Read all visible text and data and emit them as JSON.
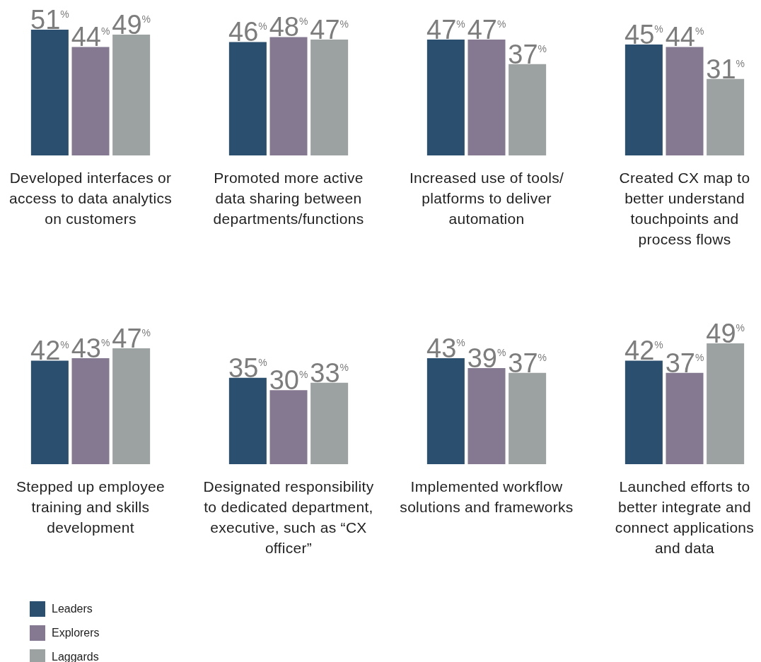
{
  "chart_data": [
    {
      "type": "bar",
      "categories": [
        "Developed interfaces or access to data analytics on customers"
      ],
      "series": [
        {
          "color": "#2b4f6e",
          "values": [
            51
          ],
          "value_labels": [
            "51$^{%}$"
          ]
        },
        {
          "color": "#857891",
          "values": [
            44
          ],
          "value_labels": [
            "44$^{%}$"
          ]
        },
        {
          "color": "#9ca1a1",
          "values": [
            49
          ],
          "value_labels": [
            "49$^{%}$"
          ]
        }
      ]
    },
    {
      "type": "bar",
      "categories": [
        "Promoted more active data sharing between departments/functions"
      ],
      "series": [
        {
          "color": "#2b4f6e",
          "values": [
            46
          ],
          "value_labels": [
            "46$^{%}$"
          ]
        },
        {
          "color": "#857891",
          "values": [
            48
          ],
          "value_labels": [
            "48$^{%}$"
          ]
        },
        {
          "color": "#9ca1a1",
          "values": [
            47
          ],
          "value_labels": [
            "47$^{%}$"
          ]
        }
      ]
    },
    {
      "type": "bar",
      "categories": [
        "Increased use of tools/ platforms to deliver automation"
      ],
      "series": [
        {
          "color": "#2b4f6e",
          "values": [
            47
          ],
          "value_labels": [
            "47$^{%}$"
          ]
        },
        {
          "color": "#857891",
          "values": [
            47
          ],
          "value_labels": [
            "47$^{%}$"
          ]
        },
        {
          "color": "#9ca1a1",
          "values": [
            37
          ],
          "value_labels": [
            "37$^{%}$"
          ]
        }
      ]
    },
    {
      "type": "bar",
      "categories": [
        "Created CX map to better understand touchpoints and process flows"
      ],
      "series": [
        {
          "color": "#2b4f6e",
          "values": [
            45
          ],
          "value_labels": [
            "45$^{%}$"
          ]
        },
        {
          "color": "#857891",
          "values": [
            44
          ],
          "value_labels": [
            "44$^{%}$"
          ]
        },
        {
          "color": "#9ca1a1",
          "values": [
            31
          ],
          "value_labels": [
            "31$^{%}$"
          ]
        }
      ]
    },
    {
      "type": "bar",
      "categories": [
        "Stepped up employee training and skills development"
      ],
      "legend": "bottom",
      "series": [
        {
          "name": "Leaders",
          "color": "#2b4f6e",
          "values": [
            42
          ],
          "value_labels": [
            "42$^{%}$"
          ]
        },
        {
          "name": "Explorers",
          "color": "#857891",
          "values": [
            43
          ],
          "value_labels": [
            "43$^{%}$"
          ]
        },
        {
          "name": "Laggards",
          "color": "#9ca1a1",
          "values": [
            47
          ],
          "value_labels": [
            "47$^{%}$"
          ]
        }
      ]
    },
    {
      "type": "bar",
      "categories": [
        "Designated responsibility to dedicated department, executive, such as “CX officer”"
      ],
      "series": [
        {
          "color": "#2b4f6e",
          "values": [
            35
          ],
          "value_labels": [
            "35$^{%}$"
          ]
        },
        {
          "color": "#857891",
          "values": [
            30
          ],
          "value_labels": [
            "30$^{%}$"
          ]
        },
        {
          "color": "#9ca1a1",
          "values": [
            33
          ],
          "value_labels": [
            "33$^{%}$"
          ]
        }
      ]
    },
    {
      "type": "bar",
      "categories": [
        "Implemented workflow solutions and frameworks"
      ],
      "series": [
        {
          "color": "#2b4f6e",
          "values": [
            43
          ],
          "value_labels": [
            "43$^{%}$"
          ]
        },
        {
          "color": "#857891",
          "values": [
            39
          ],
          "value_labels": [
            "39$^{%}$"
          ]
        },
        {
          "color": "#9ca1a1",
          "values": [
            37
          ],
          "value_labels": [
            "37$^{%}$"
          ]
        }
      ]
    },
    {
      "type": "bar",
      "categories": [
        "Launched efforts to better integrate and connect applications and data"
      ],
      "series": [
        {
          "color": "#2b4f6e",
          "values": [
            42
          ],
          "value_labels": [
            "42$^{%}$"
          ]
        },
        {
          "color": "#857891",
          "values": [
            37
          ],
          "value_labels": [
            "37$^{%}$"
          ]
        },
        {
          "color": "#9ca1a1",
          "values": [
            49
          ],
          "value_labels": [
            "49$^{%}$"
          ]
        }
      ]
    }
  ]
}
